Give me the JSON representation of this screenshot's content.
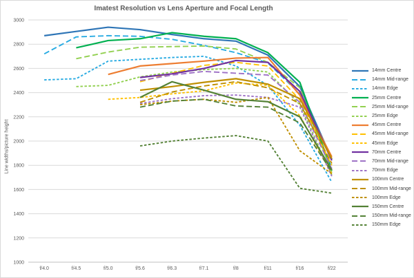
{
  "title": "Imatest Resolution vs Lens Aperture and Focal Length",
  "colors": {
    "gridline": "#D9D9D9",
    "axis_line": "#BFBFBF",
    "title_text": "#595959",
    "tick_text": "#595959",
    "legend_text": "#404040"
  },
  "chart_data": {
    "type": "line",
    "title": "Imatest Resolution vs Lens Aperture and Focal Length",
    "xlabel": "",
    "ylabel": "Line widths/picture height",
    "ylim": [
      1000,
      3000
    ],
    "ytick_step": 200,
    "grid": true,
    "legend_position": "right",
    "categories": [
      "f/4.0",
      "f/4.5",
      "f/5.0",
      "f/5.6",
      "f/6.3",
      "f/7.1",
      "f/8",
      "f/11",
      "f/16",
      "f/22"
    ],
    "series": [
      {
        "name": "14mm Centre",
        "color": "#2E75B6",
        "style": "solid",
        "values": [
          2870,
          2905,
          2940,
          2920,
          2880,
          2845,
          2825,
          2710,
          2450,
          1850
        ]
      },
      {
        "name": "14mm Mid-range",
        "color": "#29ABE2",
        "style": "long-dash",
        "values": [
          2720,
          2860,
          2870,
          2865,
          2840,
          2790,
          2730,
          2645,
          2390,
          1780
        ]
      },
      {
        "name": "14mm Edge",
        "color": "#29ABE2",
        "style": "dash",
        "values": [
          2505,
          2515,
          2660,
          2675,
          2690,
          2700,
          2620,
          2460,
          2130,
          1660
        ]
      },
      {
        "name": "25mm Centre",
        "color": "#00B050",
        "style": "solid",
        "values": [
          null,
          2770,
          2830,
          2845,
          2895,
          2865,
          2845,
          2730,
          2485,
          1755
        ]
      },
      {
        "name": "25mm Mid-range",
        "color": "#92D050",
        "style": "long-dash",
        "values": [
          null,
          2680,
          2735,
          2775,
          2780,
          2785,
          2760,
          2650,
          2440,
          1740
        ]
      },
      {
        "name": "25mm Edge",
        "color": "#92D050",
        "style": "dash",
        "values": [
          null,
          2450,
          2460,
          2530,
          2570,
          2590,
          2600,
          2570,
          2300,
          1720
        ]
      },
      {
        "name": "45mm Centre",
        "color": "#ED7D31",
        "style": "solid",
        "values": [
          null,
          null,
          2550,
          2620,
          2640,
          2660,
          2685,
          2690,
          2380,
          1870
        ]
      },
      {
        "name": "45mm Mid-range",
        "color": "#FFC000",
        "style": "long-dash",
        "values": [
          null,
          null,
          null,
          2490,
          2560,
          2625,
          2650,
          2620,
          2340,
          1800
        ]
      },
      {
        "name": "45mm Edge",
        "color": "#FFC000",
        "style": "dash",
        "values": [
          null,
          null,
          2345,
          2360,
          2390,
          2415,
          2480,
          2460,
          2210,
          1730
        ]
      },
      {
        "name": "70mm Centre",
        "color": "#7030A0",
        "style": "solid",
        "values": [
          null,
          null,
          null,
          2525,
          2555,
          2600,
          2665,
          2650,
          2410,
          1840
        ]
      },
      {
        "name": "70mm Mid-range",
        "color": "#9E72C6",
        "style": "long-dash",
        "values": [
          null,
          null,
          null,
          2500,
          2545,
          2575,
          2560,
          2545,
          2320,
          1770
        ]
      },
      {
        "name": "70mm Edge",
        "color": "#9E72C6",
        "style": "dash",
        "values": [
          null,
          null,
          null,
          2310,
          2350,
          2375,
          2380,
          2360,
          2280,
          1710
        ]
      },
      {
        "name": "100mm Centre",
        "color": "#BF8F00",
        "style": "solid",
        "values": [
          null,
          null,
          null,
          2420,
          2450,
          2485,
          2515,
          2470,
          2350,
          1855
        ]
      },
      {
        "name": "100mm Mid-range",
        "color": "#BF8F00",
        "style": "long-dash",
        "values": [
          null,
          null,
          null,
          2320,
          2405,
          2455,
          2490,
          2440,
          2310,
          1815
        ]
      },
      {
        "name": "100mm Edge",
        "color": "#BF8F00",
        "style": "dash",
        "values": [
          null,
          null,
          null,
          2300,
          2330,
          2345,
          2320,
          2360,
          1920,
          1730
        ]
      },
      {
        "name": "150mm Centre",
        "color": "#538135",
        "style": "solid",
        "values": [
          null,
          null,
          null,
          2360,
          2490,
          2420,
          2345,
          2325,
          2200,
          1760
        ]
      },
      {
        "name": "150mm Mid-range",
        "color": "#538135",
        "style": "long-dash",
        "values": [
          null,
          null,
          null,
          2280,
          2330,
          2345,
          2290,
          2280,
          2150,
          1745
        ]
      },
      {
        "name": "150mm Edge",
        "color": "#538135",
        "style": "dash",
        "values": [
          null,
          null,
          null,
          1960,
          2000,
          2025,
          2045,
          2000,
          1610,
          1570
        ]
      }
    ]
  }
}
